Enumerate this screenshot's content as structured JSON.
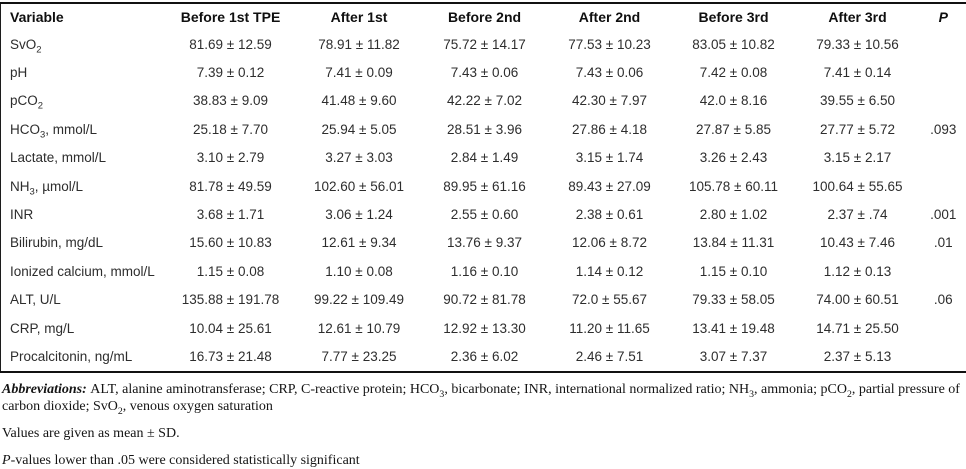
{
  "colors": {
    "border": "#1c1c1c",
    "header_text": "#0f0f0f",
    "body_text": "#2d2d2d",
    "footnote_text": "#141414",
    "background": "#ffffff"
  },
  "table": {
    "columns": [
      {
        "label": "Variable"
      },
      {
        "label": "Before 1st TPE"
      },
      {
        "label": "After 1st"
      },
      {
        "label": "Before 2nd"
      },
      {
        "label": "After 2nd"
      },
      {
        "label": "Before 3rd"
      },
      {
        "label": "After 3rd"
      },
      {
        "label": "P",
        "italic": true
      }
    ],
    "rows": [
      {
        "variable": [
          {
            "t": "SvO"
          },
          {
            "t": "2",
            "sub": true
          }
        ],
        "values": [
          "81.69 ± 12.59",
          "78.91 ± 11.82",
          "75.72 ± 14.17",
          "77.53 ± 10.23",
          "83.05 ± 10.82",
          "79.33 ± 10.56"
        ],
        "p": ""
      },
      {
        "variable": [
          {
            "t": "pH"
          }
        ],
        "values": [
          "7.39 ± 0.12",
          "7.41 ± 0.09",
          "7.43 ± 0.06",
          "7.43 ± 0.06",
          "7.42 ± 0.08",
          "7.41 ± 0.14"
        ],
        "p": ""
      },
      {
        "variable": [
          {
            "t": "pCO"
          },
          {
            "t": "2",
            "sub": true
          }
        ],
        "values": [
          "38.83 ± 9.09",
          "41.48 ± 9.60",
          "42.22 ± 7.02",
          "42.30 ± 7.97",
          "42.0 ± 8.16",
          "39.55 ± 6.50"
        ],
        "p": ""
      },
      {
        "variable": [
          {
            "t": "HCO"
          },
          {
            "t": "3",
            "sub": true
          },
          {
            "t": ", mmol/L"
          }
        ],
        "values": [
          "25.18 ± 7.70",
          "25.94 ± 5.05",
          "28.51 ± 3.96",
          "27.86 ± 4.18",
          "27.87 ± 5.85",
          "27.77 ± 5.72"
        ],
        "p": ".093"
      },
      {
        "variable": [
          {
            "t": "Lactate, mmol/L"
          }
        ],
        "values": [
          "3.10 ± 2.79",
          "3.27 ± 3.03",
          "2.84 ± 1.49",
          "3.15 ± 1.74",
          "3.26 ± 2.43",
          "3.15 ± 2.17"
        ],
        "p": ""
      },
      {
        "variable": [
          {
            "t": "NH"
          },
          {
            "t": "3",
            "sub": true
          },
          {
            "t": ", µmol/L"
          }
        ],
        "values": [
          "81.78 ± 49.59",
          "102.60 ± 56.01",
          "89.95 ± 61.16",
          "89.43 ± 27.09",
          "105.78 ± 60.11",
          "100.64 ± 55.65"
        ],
        "p": ""
      },
      {
        "variable": [
          {
            "t": "INR"
          }
        ],
        "values": [
          "3.68 ± 1.71",
          "3.06 ± 1.24",
          "2.55 ± 0.60",
          "2.38 ± 0.61",
          "2.80 ± 1.02",
          "2.37 ± .74"
        ],
        "p": ".001"
      },
      {
        "variable": [
          {
            "t": "Bilirubin, mg/dL"
          }
        ],
        "values": [
          "15.60 ± 10.83",
          "12.61 ± 9.34",
          "13.76 ± 9.37",
          "12.06 ± 8.72",
          "13.84 ± 11.31",
          "10.43 ± 7.46"
        ],
        "p": ".01"
      },
      {
        "variable": [
          {
            "t": "Ionized calcium, mmol/L"
          }
        ],
        "values": [
          "1.15 ± 0.08",
          "1.10 ± 0.08",
          "1.16 ± 0.10",
          "1.14 ± 0.12",
          "1.15 ± 0.10",
          "1.12 ± 0.13"
        ],
        "p": ""
      },
      {
        "variable": [
          {
            "t": "ALT, U/L"
          }
        ],
        "values": [
          "135.88 ± 191.78",
          "99.22 ± 109.49",
          "90.72 ± 81.78",
          "72.0 ± 55.67",
          "79.33 ± 58.05",
          "74.00 ± 60.51"
        ],
        "p": ".06"
      },
      {
        "variable": [
          {
            "t": "CRP, mg/L"
          }
        ],
        "values": [
          "10.04 ± 25.61",
          "12.61 ± 10.79",
          "12.92 ± 13.30",
          "11.20 ± 11.65",
          "13.41 ± 19.48",
          "14.71 ± 25.50"
        ],
        "p": ""
      },
      {
        "variable": [
          {
            "t": "Procalcitonin, ng/mL"
          }
        ],
        "values": [
          "16.73 ± 21.48",
          "7.77 ± 23.25",
          "2.36 ± 6.02",
          "2.46 ± 7.51",
          "3.07 ± 7.37",
          "2.37 ± 5.13"
        ],
        "p": ""
      }
    ]
  },
  "footnotes": {
    "lines": [
      {
        "name": "abbreviations",
        "segments": [
          {
            "t": "Abbreviations: ",
            "b": true,
            "i": true
          },
          {
            "t": "ALT, alanine aminotransferase; CRP, C-reactive protein; HCO"
          },
          {
            "t": "3",
            "sub": true
          },
          {
            "t": ", bicarbonate; INR, international normalized ratio; NH"
          },
          {
            "t": "3",
            "sub": true
          },
          {
            "t": ", ammonia; pCO"
          },
          {
            "t": "2",
            "sub": true
          },
          {
            "t": ", partial pressure of carbon dioxide; SvO"
          },
          {
            "t": "2",
            "sub": true
          },
          {
            "t": ", venous oxygen saturation"
          }
        ]
      },
      {
        "name": "values-note",
        "segments": [
          {
            "t": "Values are given as mean ± SD."
          }
        ]
      },
      {
        "name": "p-note",
        "segments": [
          {
            "t": "P",
            "i": true
          },
          {
            "t": "-values lower than .05 were considered statistically significant"
          }
        ]
      }
    ]
  }
}
